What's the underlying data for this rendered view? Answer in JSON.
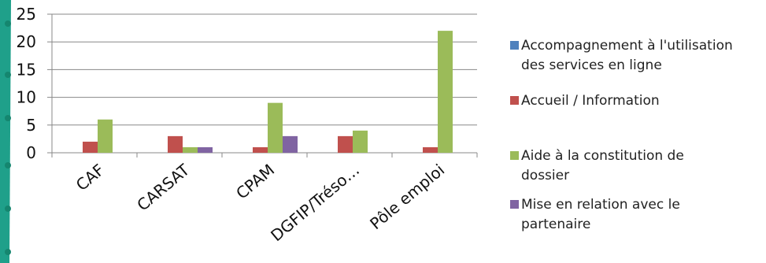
{
  "colors": {
    "accent_band": "#1fa08a",
    "accent_dots": "#15866f",
    "axis": "#888888",
    "grid": "#888888",
    "text": "#111111"
  },
  "chart_data": {
    "type": "bar",
    "title": "",
    "xlabel": "",
    "ylabel": "",
    "ylim": [
      0,
      25
    ],
    "yticks": [
      0,
      5,
      10,
      15,
      20,
      25
    ],
    "grid": true,
    "legend_position": "right",
    "categories": [
      "CAF",
      "CARSAT",
      "CPAM",
      "DGFIP/Tréso…",
      "Pôle emploi"
    ],
    "series": [
      {
        "name": "Accompagnement à l'utilisation des services en ligne",
        "color": "#4f81bd",
        "values": [
          0,
          0,
          0,
          0,
          0
        ]
      },
      {
        "name": "Accueil / Information",
        "color": "#c0504d",
        "values": [
          2,
          3,
          1,
          3,
          1
        ]
      },
      {
        "name": "Aide à la constitution de dossier",
        "color": "#9bbb59",
        "values": [
          6,
          1,
          9,
          4,
          22
        ]
      },
      {
        "name": "Mise en relation avec le partenaire",
        "color": "#8064a2",
        "values": [
          0,
          1,
          3,
          0,
          0
        ]
      }
    ]
  },
  "legend": {
    "items": [
      {
        "line1": "Accompagnement à l'utilisation",
        "line2": "des services en ligne"
      },
      {
        "line1": "Accueil / Information",
        "line2": ""
      },
      {
        "line1": "Aide à la constitution de",
        "line2": "dossier"
      },
      {
        "line1": "Mise en relation avec le",
        "line2": "partenaire"
      }
    ]
  }
}
